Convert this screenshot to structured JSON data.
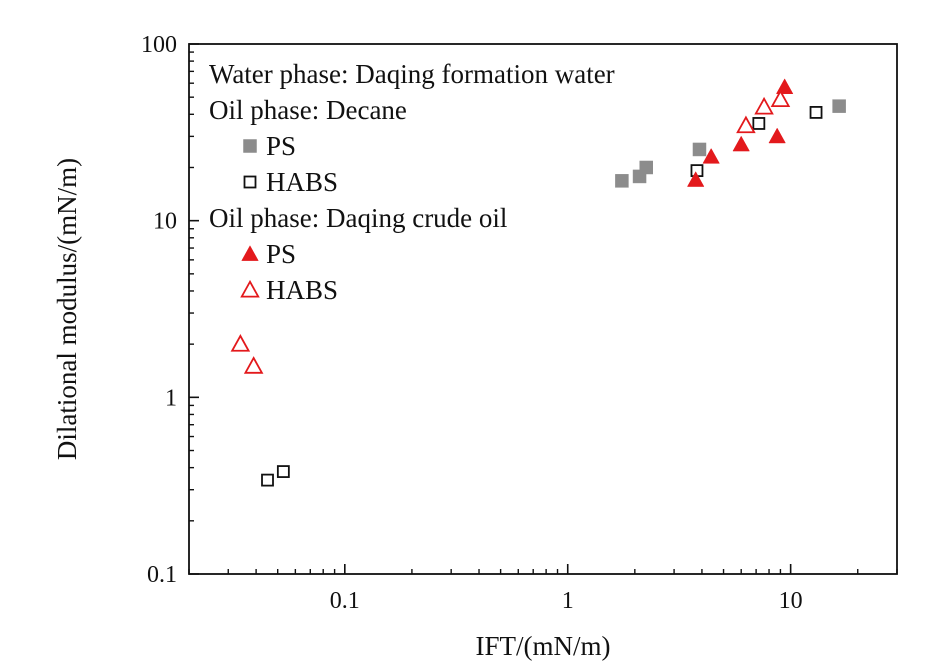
{
  "chart_data": {
    "type": "scatter",
    "xlabel": "IFT/(mN/m)",
    "ylabel": "Dilational modulus/(mN/m)",
    "xscale": "log",
    "yscale": "log",
    "xlim": [
      0.02,
      30
    ],
    "ylim": [
      0.1,
      100
    ],
    "xticks": [
      {
        "value": 0.1,
        "label": "0.1"
      },
      {
        "value": 1,
        "label": "1"
      },
      {
        "value": 10,
        "label": "10"
      }
    ],
    "yticks": [
      {
        "value": 0.1,
        "label": "0.1"
      },
      {
        "value": 1,
        "label": "1"
      },
      {
        "value": 10,
        "label": "10"
      },
      {
        "value": 100,
        "label": "100"
      }
    ],
    "grid": false,
    "legend_placement": "top-left",
    "legend": {
      "groups": [
        {
          "title": "Water phase: Daqing formation water",
          "entries": []
        },
        {
          "title": "Oil phase: Decane",
          "entries": [
            {
              "series_index": 0,
              "label": "PS"
            },
            {
              "series_index": 1,
              "label": "HABS"
            }
          ]
        },
        {
          "title": "Oil phase: Daqing crude oil",
          "entries": [
            {
              "series_index": 2,
              "label": "PS"
            },
            {
              "series_index": 3,
              "label": "HABS"
            }
          ]
        }
      ]
    },
    "series": [
      {
        "name": "PS",
        "marker": "square",
        "filled": true,
        "color": "#8c8c8c",
        "points": [
          [
            1.75,
            16.8
          ],
          [
            2.1,
            17.8
          ],
          [
            2.25,
            20.0
          ],
          [
            3.9,
            25.3
          ],
          [
            16.5,
            44.5
          ]
        ]
      },
      {
        "name": "HABS",
        "marker": "square",
        "filled": false,
        "color": "#111111",
        "points": [
          [
            0.045,
            0.34
          ],
          [
            0.053,
            0.38
          ],
          [
            3.8,
            19.2
          ],
          [
            7.2,
            35.5
          ],
          [
            13.0,
            41.0
          ]
        ]
      },
      {
        "name": "PS",
        "marker": "triangle",
        "filled": true,
        "color": "#e3191c",
        "points": [
          [
            3.75,
            17.0
          ],
          [
            4.4,
            23.0
          ],
          [
            6.0,
            27.0
          ],
          [
            8.7,
            30.0
          ],
          [
            9.4,
            57.0
          ]
        ]
      },
      {
        "name": "HABS",
        "marker": "triangle",
        "filled": false,
        "color": "#e3191c",
        "points": [
          [
            0.034,
            2.0
          ],
          [
            0.039,
            1.5
          ],
          [
            6.3,
            34.5
          ],
          [
            7.6,
            44.0
          ],
          [
            9.0,
            48.5
          ]
        ]
      }
    ]
  }
}
